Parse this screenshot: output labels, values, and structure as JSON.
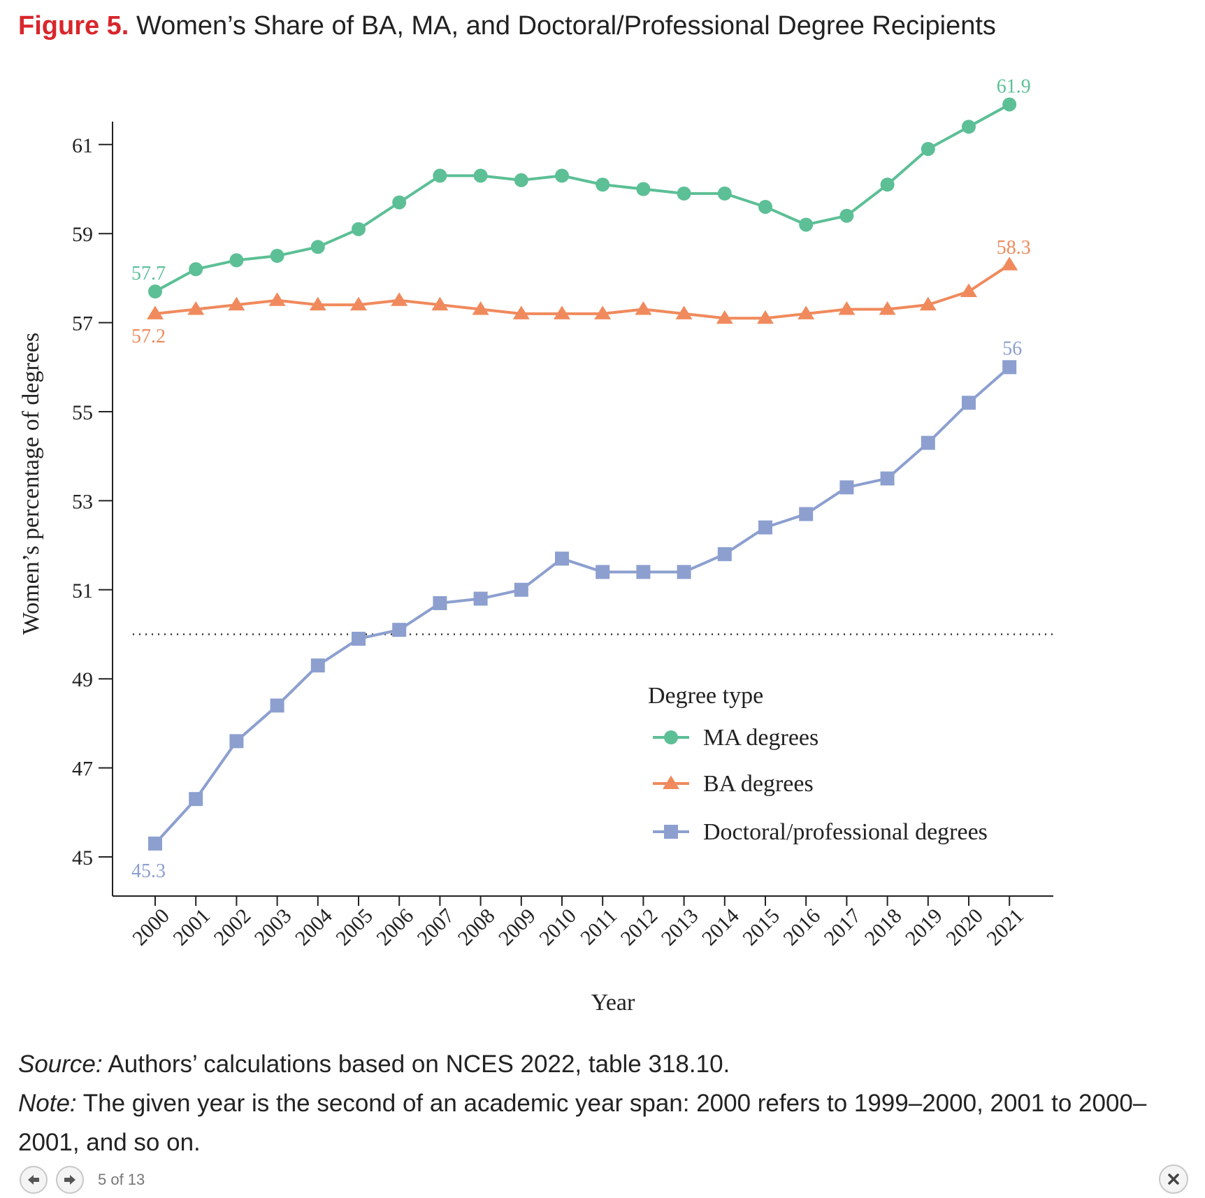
{
  "header": {
    "figure_label": "Figure 5.",
    "title": "Women’s Share of BA, MA, and Doctoral/Professional Degree Recipients"
  },
  "chart_data": {
    "type": "line",
    "xlabel": "Year",
    "ylabel": "Women’s percentage of degrees",
    "x": [
      2000,
      2001,
      2002,
      2003,
      2004,
      2005,
      2006,
      2007,
      2008,
      2009,
      2010,
      2011,
      2012,
      2013,
      2014,
      2015,
      2016,
      2017,
      2018,
      2019,
      2020,
      2021
    ],
    "ylim": [
      44,
      62.5
    ],
    "yticks": [
      45,
      47,
      49,
      51,
      53,
      55,
      57,
      59,
      61
    ],
    "reference_line": 50,
    "grid": false,
    "legend": {
      "title": "Degree type",
      "placement": "lower-right"
    },
    "series": [
      {
        "name": "MA degrees",
        "color": "#5cbf96",
        "marker": "circle",
        "values": [
          57.7,
          58.2,
          58.4,
          58.5,
          58.7,
          59.1,
          59.7,
          60.3,
          60.3,
          60.2,
          60.3,
          60.1,
          60.0,
          59.9,
          59.9,
          59.6,
          59.2,
          59.4,
          60.1,
          60.9,
          61.4,
          61.9
        ],
        "start_label": "57.7",
        "end_label": "61.9"
      },
      {
        "name": "BA degrees",
        "color": "#f08a5d",
        "marker": "triangle",
        "values": [
          57.2,
          57.3,
          57.4,
          57.5,
          57.4,
          57.4,
          57.5,
          57.4,
          57.3,
          57.2,
          57.2,
          57.2,
          57.3,
          57.2,
          57.1,
          57.1,
          57.2,
          57.3,
          57.3,
          57.4,
          57.7,
          58.3
        ],
        "start_label": "57.2",
        "end_label": "58.3"
      },
      {
        "name": "Doctoral/professional degrees",
        "color": "#8c9fcf",
        "marker": "square",
        "values": [
          45.3,
          46.3,
          47.6,
          48.4,
          49.3,
          49.9,
          50.1,
          50.7,
          50.8,
          51.0,
          51.7,
          51.4,
          51.4,
          51.4,
          51.8,
          52.4,
          52.7,
          53.3,
          53.5,
          54.3,
          55.2,
          56.0
        ],
        "start_label": "45.3",
        "end_label": "56"
      }
    ]
  },
  "footer": {
    "source_label": "Source:",
    "source_text": " Authors’ calculations based on NCES 2022, table 318.10.",
    "note_label": "Note:",
    "note_text": " The given year is the second of an academic year span: 2000 refers to 1999–2000, 2001 to 2000–2001, and so on."
  },
  "viewer": {
    "page_counter": "5 of 13",
    "prev_icon": "arrow-left-icon",
    "next_icon": "arrow-right-icon",
    "close_icon": "close-icon"
  }
}
